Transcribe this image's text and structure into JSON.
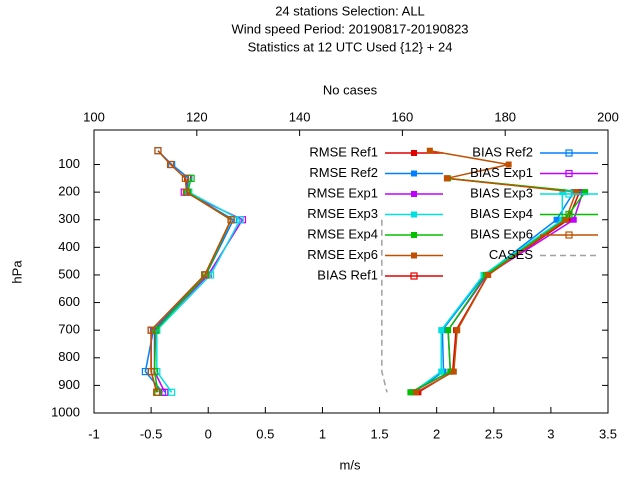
{
  "chart_data": {
    "type": "line",
    "title": [
      "24 stations Selection: ALL",
      "Wind speed  Period: 20190817-20190823",
      "Statistics at 12 UTC  Used {12} + 24"
    ],
    "xlabel": "m/s",
    "ylabel": "hPa",
    "x2label": "No cases",
    "xlim": [
      -1,
      3.5
    ],
    "xticks": [
      -1,
      -0.5,
      0,
      0.5,
      1,
      1.5,
      2,
      2.5,
      3,
      3.5
    ],
    "x2lim": [
      100,
      200
    ],
    "x2ticks": [
      100,
      120,
      140,
      160,
      180,
      200
    ],
    "ylim": [
      1000,
      -25
    ],
    "yticks": [
      100,
      200,
      300,
      400,
      500,
      600,
      700,
      800,
      900,
      1000
    ],
    "y": [
      50,
      100,
      150,
      200,
      300,
      500,
      700,
      850,
      925
    ],
    "series": [
      {
        "name": "RMSE Ref1",
        "color": "#e00000",
        "marker": "filled",
        "values": [
          null,
          null,
          2.09,
          3.25,
          3.15,
          2.45,
          2.17,
          2.14,
          1.84
        ]
      },
      {
        "name": "RMSE Ref2",
        "color": "#0080ff",
        "marker": "filled",
        "values": [
          null,
          null,
          null,
          3.2,
          3.05,
          2.42,
          2.05,
          2.06,
          1.8
        ]
      },
      {
        "name": "RMSE Exp1",
        "color": "#c000ff",
        "marker": "filled",
        "values": [
          null,
          null,
          null,
          3.28,
          3.2,
          2.44,
          2.1,
          2.12,
          1.78
        ]
      },
      {
        "name": "RMSE Exp3",
        "color": "#00e0e0",
        "marker": "filled",
        "values": [
          null,
          null,
          null,
          3.1,
          3.1,
          2.41,
          2.04,
          2.04,
          1.79
        ]
      },
      {
        "name": "RMSE Exp4",
        "color": "#00c000",
        "marker": "filled",
        "values": [
          null,
          null,
          2.1,
          3.3,
          3.12,
          2.43,
          2.1,
          2.12,
          1.77
        ]
      },
      {
        "name": "RMSE Exp6",
        "color": "#c05000",
        "marker": "filled",
        "values": [
          1.94,
          2.63,
          2.09,
          3.22,
          3.13,
          2.45,
          2.18,
          2.15,
          1.82
        ]
      },
      {
        "name": "BIAS Ref1",
        "color": "#e00000",
        "marker": "open",
        "values": [
          null,
          null,
          -0.18,
          -0.19,
          0.2,
          -0.03,
          -0.5,
          -0.5,
          -0.45
        ]
      },
      {
        "name": "BIAS Ref2",
        "color": "#0080ff",
        "marker": "open",
        "values": [
          -0.44,
          -0.32,
          -0.17,
          -0.19,
          0.22,
          -0.02,
          -0.48,
          -0.55,
          -0.4
        ]
      },
      {
        "name": "BIAS Exp1",
        "color": "#c000ff",
        "marker": "open",
        "values": [
          null,
          null,
          null,
          -0.21,
          0.3,
          0,
          -0.47,
          -0.47,
          -0.38
        ]
      },
      {
        "name": "BIAS Exp3",
        "color": "#00e0e0",
        "marker": "open",
        "values": [
          null,
          null,
          null,
          -0.17,
          0.28,
          0.02,
          -0.45,
          -0.45,
          -0.32
        ]
      },
      {
        "name": "BIAS Exp4",
        "color": "#00c000",
        "marker": "open",
        "values": [
          null,
          null,
          -0.15,
          -0.18,
          0.2,
          -0.02,
          -0.46,
          -0.47,
          -0.44
        ]
      },
      {
        "name": "BIAS Exp6",
        "color": "#c05000",
        "marker": "open",
        "values": [
          -0.44,
          -0.33,
          -0.2,
          -0.19,
          0.2,
          -0.03,
          -0.5,
          -0.5,
          -0.45
        ]
      },
      {
        "name": "CASES",
        "color": "#a0a0a0",
        "marker": "none",
        "dashed": true,
        "axis": "x2",
        "values": [
          null,
          null,
          null,
          null,
          156,
          156,
          156,
          156,
          157
        ]
      }
    ]
  }
}
